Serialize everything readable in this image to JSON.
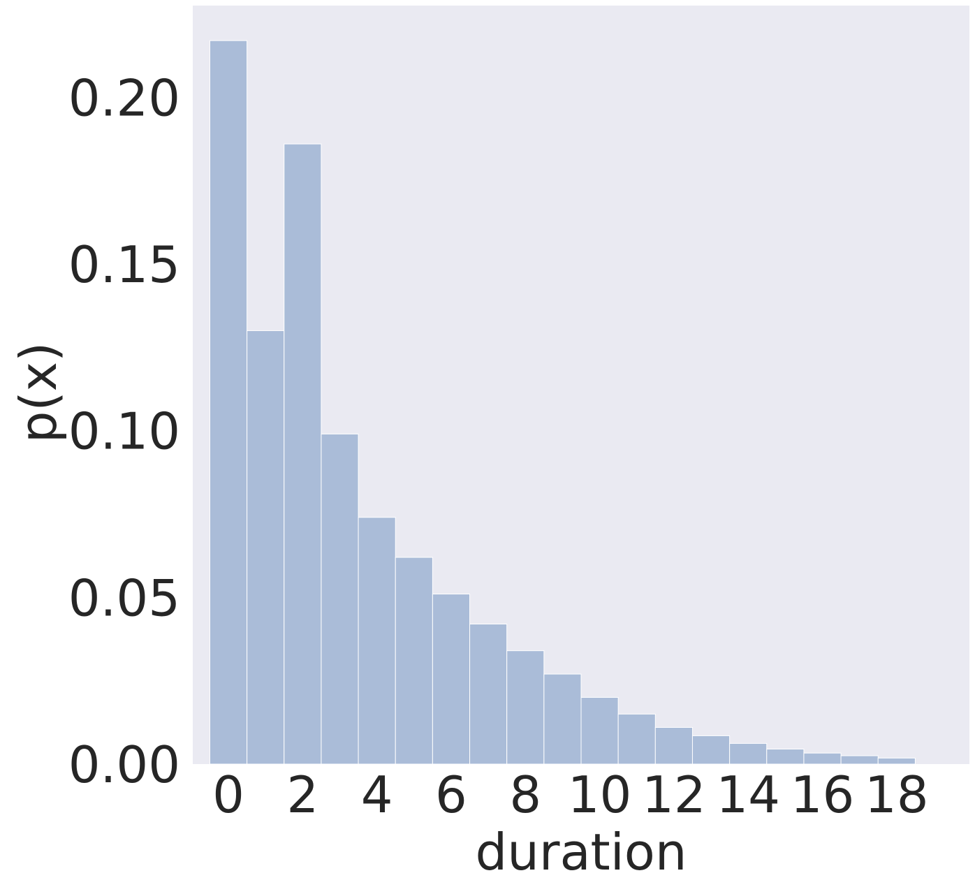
{
  "chart_data": {
    "type": "bar",
    "subtype": "histogram",
    "title": "",
    "xlabel": "duration",
    "ylabel": "p(x)",
    "xlim": [
      -0.96,
      19.96
    ],
    "ylim": [
      0,
      0.2275
    ],
    "x_ticks": [
      0,
      2,
      4,
      6,
      8,
      10,
      12,
      14,
      16,
      18
    ],
    "y_ticks": [
      "0.00",
      "0.05",
      "0.10",
      "0.15",
      "0.20"
    ],
    "bin_width": 1,
    "bin_starts": [
      -0.5,
      0.5,
      1.5,
      2.5,
      3.5,
      4.5,
      5.5,
      6.5,
      7.5,
      8.5,
      9.5,
      10.5,
      11.5,
      12.5,
      13.5,
      14.5,
      15.5,
      16.5,
      17.5
    ],
    "values": [
      0.217,
      0.13,
      0.186,
      0.099,
      0.074,
      0.062,
      0.051,
      0.042,
      0.034,
      0.027,
      0.02,
      0.015,
      0.011,
      0.0085,
      0.0062,
      0.0045,
      0.0033,
      0.0025,
      0.0018
    ],
    "grid": false,
    "colors": {
      "background": "#eaeaf2",
      "bar_fill": "#aabcd8",
      "bar_edge": "#ffffff",
      "text": "#262626"
    }
  }
}
